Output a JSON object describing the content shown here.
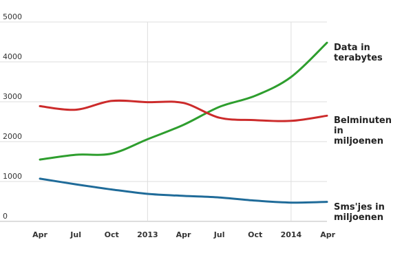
{
  "chart_data": {
    "type": "line",
    "x": [
      "Apr",
      "Jul",
      "Oct",
      "2013",
      "Apr",
      "Jul",
      "Oct",
      "2014",
      "Apr"
    ],
    "ylim": [
      0,
      5000
    ],
    "yticks": [
      0,
      1000,
      2000,
      3000,
      4000,
      5000
    ],
    "grid": true,
    "series": [
      {
        "name": "Data in terabytes",
        "label_lines": [
          "Data in",
          "terabytes"
        ],
        "color": "#2e9e2e",
        "values": [
          1550,
          1670,
          1700,
          2060,
          2420,
          2870,
          3150,
          3620,
          4480
        ]
      },
      {
        "name": "Belminuten in miljoenen",
        "label_lines": [
          "Belminuten",
          "in",
          "miljoenen"
        ],
        "color": "#cc2b2b",
        "values": [
          2890,
          2800,
          3020,
          2990,
          2970,
          2600,
          2540,
          2520,
          2650
        ]
      },
      {
        "name": "Sms'jes in miljoenen",
        "label_lines": [
          "Sms'jes in",
          "miljoenen"
        ],
        "color": "#1f6b99",
        "values": [
          1070,
          930,
          800,
          690,
          640,
          600,
          520,
          470,
          490
        ]
      }
    ]
  }
}
